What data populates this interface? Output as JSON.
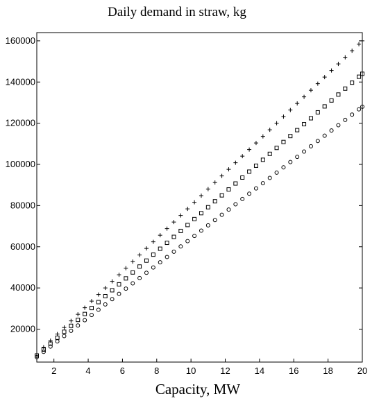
{
  "chart_data": {
    "type": "scatter",
    "title": "Daily demand in straw, kg",
    "xlabel": "Capacity, MW",
    "ylabel": "",
    "xlim": [
      1,
      20
    ],
    "ylim": [
      4000,
      164000
    ],
    "x_ticks": [
      2,
      4,
      6,
      8,
      10,
      12,
      14,
      16,
      18,
      20
    ],
    "y_ticks": [
      20000,
      40000,
      60000,
      80000,
      100000,
      120000,
      140000,
      160000
    ],
    "grid": false,
    "legend": "none",
    "series": [
      {
        "marker": "plus",
        "x": [
          1,
          1.4,
          1.8,
          2.2,
          2.6,
          3.0,
          3.4,
          3.8,
          4.2,
          4.6,
          5.0,
          5.4,
          5.8,
          6.2,
          6.6,
          7.0,
          7.4,
          7.8,
          8.2,
          8.6,
          9.0,
          9.4,
          9.8,
          10.2,
          10.6,
          11.0,
          11.4,
          11.8,
          12.2,
          12.6,
          13.0,
          13.4,
          13.8,
          14.2,
          14.6,
          15.0,
          15.4,
          15.8,
          16.2,
          16.6,
          17.0,
          17.4,
          17.8,
          18.2,
          18.6,
          19.0,
          19.4,
          19.8,
          20.0
        ],
        "y": [
          8000,
          11200,
          14400,
          17600,
          20800,
          24000,
          27200,
          30400,
          33600,
          36800,
          40000,
          43200,
          46400,
          49600,
          52800,
          56000,
          59200,
          62400,
          65600,
          68800,
          72000,
          75200,
          78400,
          81600,
          84800,
          88000,
          91200,
          94400,
          97600,
          100800,
          104000,
          107200,
          110400,
          113600,
          116800,
          120000,
          123200,
          126400,
          129600,
          132800,
          136000,
          139200,
          142400,
          145600,
          148800,
          152000,
          155200,
          158400,
          160000
        ]
      },
      {
        "marker": "square",
        "x": [
          1,
          1.4,
          1.8,
          2.2,
          2.6,
          3.0,
          3.4,
          3.8,
          4.2,
          4.6,
          5.0,
          5.4,
          5.8,
          6.2,
          6.6,
          7.0,
          7.4,
          7.8,
          8.2,
          8.6,
          9.0,
          9.4,
          9.8,
          10.2,
          10.6,
          11.0,
          11.4,
          11.8,
          12.2,
          12.6,
          13.0,
          13.4,
          13.8,
          14.2,
          14.6,
          15.0,
          15.4,
          15.8,
          16.2,
          16.6,
          17.0,
          17.4,
          17.8,
          18.2,
          18.6,
          19.0,
          19.4,
          19.8,
          20.0
        ],
        "y": [
          7200,
          10080,
          12960,
          15840,
          18720,
          21600,
          24480,
          27360,
          30240,
          33120,
          36000,
          38880,
          41760,
          44640,
          47520,
          50400,
          53280,
          56160,
          59040,
          61920,
          64800,
          67680,
          70560,
          73440,
          76320,
          79200,
          82080,
          84960,
          87840,
          90720,
          93600,
          96480,
          99360,
          102240,
          105120,
          108000,
          110880,
          113760,
          116640,
          119520,
          122400,
          125280,
          128160,
          131040,
          133920,
          136800,
          139680,
          142560,
          144000
        ]
      },
      {
        "marker": "circle",
        "x": [
          1,
          1.4,
          1.8,
          2.2,
          2.6,
          3.0,
          3.4,
          3.8,
          4.2,
          4.6,
          5.0,
          5.4,
          5.8,
          6.2,
          6.6,
          7.0,
          7.4,
          7.8,
          8.2,
          8.6,
          9.0,
          9.4,
          9.8,
          10.2,
          10.6,
          11.0,
          11.4,
          11.8,
          12.2,
          12.6,
          13.0,
          13.4,
          13.8,
          14.2,
          14.6,
          15.0,
          15.4,
          15.8,
          16.2,
          16.6,
          17.0,
          17.4,
          17.8,
          18.2,
          18.6,
          19.0,
          19.4,
          19.8,
          20.0
        ],
        "y": [
          6400,
          8960,
          11520,
          14080,
          16640,
          19200,
          21760,
          24320,
          26880,
          29440,
          32000,
          34560,
          37120,
          39680,
          42240,
          44800,
          47360,
          49920,
          52480,
          55040,
          57600,
          60160,
          62720,
          65280,
          67840,
          70400,
          72960,
          75520,
          78080,
          80640,
          83200,
          85760,
          88320,
          90880,
          93440,
          96000,
          98560,
          101120,
          103680,
          106240,
          108800,
          111360,
          113920,
          116480,
          119040,
          121600,
          124160,
          126720,
          128000
        ]
      }
    ]
  }
}
